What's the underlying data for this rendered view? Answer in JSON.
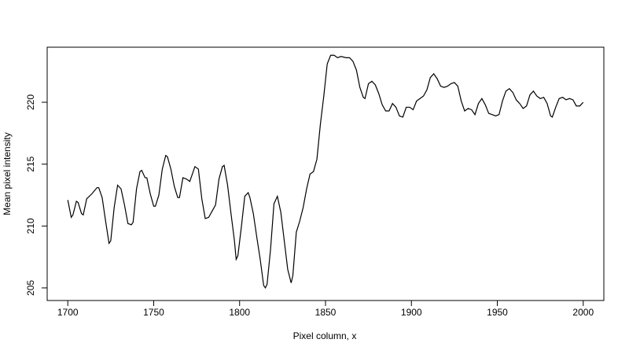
{
  "chart_data": {
    "type": "line",
    "x_label": "Pixel column, x",
    "y_label": "Mean pixel intensity",
    "xlim": [
      1688,
      2012
    ],
    "ylim": [
      203.98,
      224.45
    ],
    "xticks": [
      1700,
      1750,
      1800,
      1850,
      1900,
      1950,
      2000
    ],
    "yticks": [
      205,
      210,
      215,
      220
    ],
    "color": "#000000",
    "x": [
      1700,
      1702,
      1703,
      1705,
      1706,
      1708,
      1709,
      1711,
      1714,
      1717,
      1718,
      1720,
      1722,
      1724,
      1725,
      1727,
      1729,
      1731,
      1733,
      1735,
      1737,
      1738,
      1740,
      1742,
      1743,
      1745,
      1746,
      1748,
      1750,
      1751,
      1753,
      1755,
      1757,
      1758,
      1760,
      1762,
      1764,
      1765,
      1767,
      1769,
      1771,
      1774,
      1776,
      1778,
      1780,
      1782,
      1784,
      1786,
      1788,
      1790,
      1791,
      1793,
      1795,
      1797,
      1798,
      1799,
      1801,
      1803,
      1805,
      1806,
      1808,
      1810,
      1812,
      1814,
      1815,
      1816,
      1818,
      1820,
      1822,
      1824,
      1826,
      1828,
      1830,
      1831,
      1833,
      1835,
      1837,
      1839,
      1841,
      1843,
      1845,
      1847,
      1849,
      1851,
      1853,
      1855,
      1857,
      1859,
      1862,
      1864,
      1866,
      1868,
      1870,
      1872,
      1873,
      1875,
      1877,
      1879,
      1881,
      1883,
      1885,
      1887,
      1889,
      1891,
      1893,
      1895,
      1897,
      1899,
      1901,
      1903,
      1905,
      1907,
      1909,
      1911,
      1913,
      1915,
      1917,
      1919,
      1921,
      1923,
      1925,
      1927,
      1929,
      1931,
      1933,
      1935,
      1937,
      1939,
      1941,
      1943,
      1945,
      1947,
      1949,
      1951,
      1953,
      1955,
      1957,
      1959,
      1961,
      1963,
      1965,
      1967,
      1969,
      1971,
      1973,
      1975,
      1977,
      1979,
      1981,
      1982,
      1984,
      1986,
      1988,
      1990,
      1992,
      1994,
      1996,
      1998,
      2000
    ],
    "values": [
      212.1,
      210.7,
      210.9,
      212.0,
      211.9,
      211.0,
      210.9,
      212.2,
      212.6,
      213.1,
      213.1,
      212.3,
      210.4,
      208.6,
      208.8,
      211.5,
      213.3,
      213.0,
      211.7,
      210.2,
      210.1,
      210.3,
      213.0,
      214.4,
      214.5,
      213.9,
      213.9,
      212.6,
      211.6,
      211.6,
      212.5,
      214.6,
      215.7,
      215.6,
      214.6,
      213.2,
      212.3,
      212.3,
      213.9,
      213.8,
      213.6,
      214.8,
      214.6,
      212.2,
      210.6,
      210.7,
      211.2,
      211.7,
      213.8,
      214.8,
      214.9,
      213.3,
      211.0,
      208.8,
      207.3,
      207.6,
      209.9,
      212.4,
      212.7,
      212.3,
      211.0,
      209.1,
      207.3,
      205.2,
      205.0,
      205.3,
      208.1,
      211.8,
      212.4,
      211.1,
      208.8,
      206.5,
      205.4,
      206.0,
      209.5,
      210.4,
      211.5,
      213.0,
      214.2,
      214.4,
      215.4,
      218.2,
      220.5,
      223.1,
      223.8,
      223.8,
      223.6,
      223.7,
      223.6,
      223.6,
      223.3,
      222.6,
      221.2,
      220.4,
      220.3,
      221.5,
      221.7,
      221.4,
      220.7,
      219.8,
      219.3,
      219.3,
      219.9,
      219.6,
      218.9,
      218.8,
      219.6,
      219.6,
      219.4,
      220.1,
      220.3,
      220.5,
      221.0,
      222.0,
      222.3,
      221.9,
      221.3,
      221.2,
      221.3,
      221.5,
      221.6,
      221.3,
      220.1,
      219.3,
      219.5,
      219.4,
      219.0,
      219.9,
      220.3,
      219.8,
      219.1,
      219.0,
      218.9,
      219.0,
      220.1,
      220.9,
      221.1,
      220.8,
      220.2,
      219.9,
      219.5,
      219.7,
      220.6,
      220.9,
      220.5,
      220.3,
      220.4,
      219.9,
      218.9,
      218.8,
      219.6,
      220.3,
      220.4,
      220.2,
      220.3,
      220.2,
      219.7,
      219.7,
      220.0
    ]
  }
}
